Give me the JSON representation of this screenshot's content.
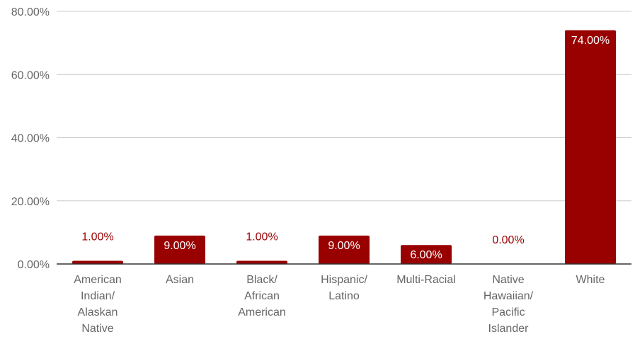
{
  "chart_data": {
    "type": "bar",
    "title": "",
    "xlabel": "",
    "ylabel": "",
    "categories": [
      [
        "American",
        "Indian/",
        "Alaskan",
        "Native"
      ],
      [
        "Asian"
      ],
      [
        "Black/",
        "African",
        "American"
      ],
      [
        "Hispanic/",
        "Latino"
      ],
      [
        "Multi-Racial"
      ],
      [
        "Native",
        "Hawaiian/",
        "Pacific",
        "Islander"
      ],
      [
        "White"
      ]
    ],
    "values": [
      1,
      9,
      1,
      9,
      6,
      0,
      74
    ],
    "value_labels": [
      "1.00%",
      "9.00%",
      "1.00%",
      "9.00%",
      "6.00%",
      "0.00%",
      "74.00%"
    ],
    "ylim": [
      0,
      80
    ],
    "y_ticks": [
      0,
      20,
      40,
      60,
      80
    ],
    "y_tick_labels": [
      "0.00%",
      "20.00%",
      "40.00%",
      "60.00%",
      "80.00%"
    ],
    "grid": true,
    "legend": "none",
    "colors": {
      "bar": "#990000",
      "gridline": "#cccccc",
      "axis": "#333333",
      "label_inside": "#ffffff",
      "label_outside": "#990000",
      "text": "#666666"
    }
  }
}
